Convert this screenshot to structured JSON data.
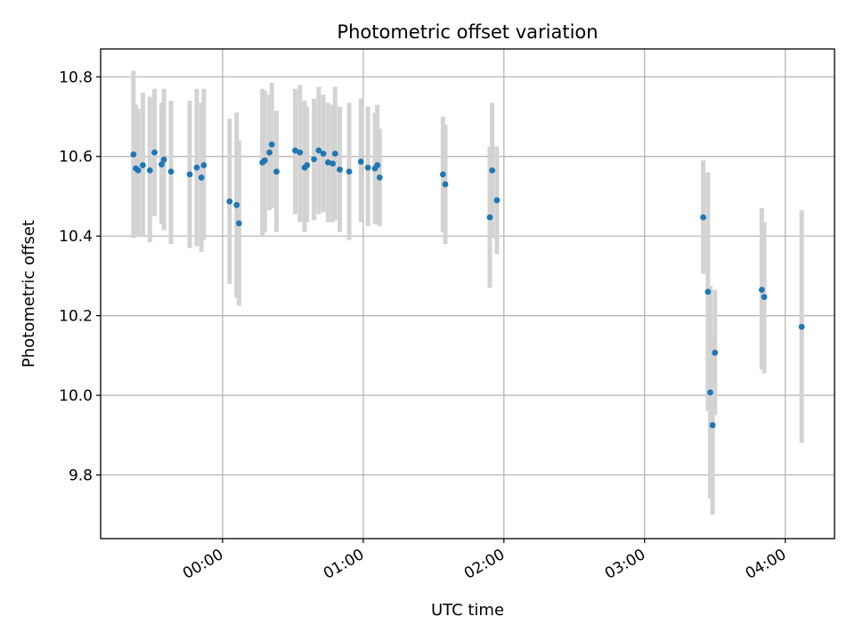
{
  "chart_data": {
    "type": "scatter",
    "title": "Photometric offset variation",
    "xlabel": "UTC time",
    "ylabel": "Photometric offset",
    "x_tick_labels": [
      "00:00",
      "01:00",
      "02:00",
      "03:00",
      "04:00"
    ],
    "y_tick_labels": [
      "9.8",
      "10.0",
      "10.2",
      "10.4",
      "10.6",
      "10.8"
    ],
    "x_unit": "time of day (HH:MM, UTC)",
    "xlim": [
      "23:08",
      "04:21"
    ],
    "ylim": [
      9.64,
      10.87
    ],
    "grid": true,
    "colors": {
      "points": "#1f77b4",
      "error_bars": "#d3d3d3",
      "grid": "#b0b0b0"
    },
    "series": [
      {
        "points": [
          {
            "x": "23:22",
            "y": 10.605,
            "err_low": 10.395,
            "err_high": 10.815
          },
          {
            "x": "23:23",
            "y": 10.57,
            "err_low": 10.4,
            "err_high": 10.73
          },
          {
            "x": "23:24",
            "y": 10.565,
            "err_low": 10.4,
            "err_high": 10.72
          },
          {
            "x": "23:26",
            "y": 10.578,
            "err_low": 10.4,
            "err_high": 10.76
          },
          {
            "x": "23:29",
            "y": 10.565,
            "err_low": 10.385,
            "err_high": 10.75
          },
          {
            "x": "23:31",
            "y": 10.61,
            "err_low": 10.45,
            "err_high": 10.77
          },
          {
            "x": "23:34",
            "y": 10.58,
            "err_low": 10.43,
            "err_high": 10.735
          },
          {
            "x": "23:35",
            "y": 10.592,
            "err_low": 10.415,
            "err_high": 10.77
          },
          {
            "x": "23:38",
            "y": 10.562,
            "err_low": 10.38,
            "err_high": 10.74
          },
          {
            "x": "23:46",
            "y": 10.555,
            "err_low": 10.37,
            "err_high": 10.74
          },
          {
            "x": "23:49",
            "y": 10.572,
            "err_low": 10.375,
            "err_high": 10.77
          },
          {
            "x": "23:51",
            "y": 10.547,
            "err_low": 10.36,
            "err_high": 10.735
          },
          {
            "x": "23:52",
            "y": 10.578,
            "err_low": 10.39,
            "err_high": 10.77
          },
          {
            "x": "00:03",
            "y": 10.487,
            "err_low": 10.28,
            "err_high": 10.695
          },
          {
            "x": "00:06",
            "y": 10.478,
            "err_low": 10.245,
            "err_high": 10.71
          },
          {
            "x": "00:07",
            "y": 10.432,
            "err_low": 10.225,
            "err_high": 10.64
          },
          {
            "x": "00:17",
            "y": 10.585,
            "err_low": 10.4,
            "err_high": 10.77
          },
          {
            "x": "00:18",
            "y": 10.59,
            "err_low": 10.41,
            "err_high": 10.765
          },
          {
            "x": "00:20",
            "y": 10.61,
            "err_low": 10.465,
            "err_high": 10.755
          },
          {
            "x": "00:21",
            "y": 10.63,
            "err_low": 10.47,
            "err_high": 10.785
          },
          {
            "x": "00:23",
            "y": 10.562,
            "err_low": 10.41,
            "err_high": 10.715
          },
          {
            "x": "00:31",
            "y": 10.615,
            "err_low": 10.455,
            "err_high": 10.77
          },
          {
            "x": "00:33",
            "y": 10.61,
            "err_low": 10.435,
            "err_high": 10.78
          },
          {
            "x": "00:35",
            "y": 10.572,
            "err_low": 10.41,
            "err_high": 10.74
          },
          {
            "x": "00:36",
            "y": 10.578,
            "err_low": 10.435,
            "err_high": 10.725
          },
          {
            "x": "00:39",
            "y": 10.593,
            "err_low": 10.44,
            "err_high": 10.745
          },
          {
            "x": "00:41",
            "y": 10.615,
            "err_low": 10.455,
            "err_high": 10.775
          },
          {
            "x": "00:43",
            "y": 10.607,
            "err_low": 10.46,
            "err_high": 10.755
          },
          {
            "x": "00:45",
            "y": 10.585,
            "err_low": 10.435,
            "err_high": 10.735
          },
          {
            "x": "00:47",
            "y": 10.582,
            "err_low": 10.435,
            "err_high": 10.73
          },
          {
            "x": "00:48",
            "y": 10.607,
            "err_low": 10.44,
            "err_high": 10.775
          },
          {
            "x": "00:50",
            "y": 10.567,
            "err_low": 10.41,
            "err_high": 10.725
          },
          {
            "x": "00:54",
            "y": 10.562,
            "err_low": 10.39,
            "err_high": 10.735
          },
          {
            "x": "00:59",
            "y": 10.587,
            "err_low": 10.435,
            "err_high": 10.745
          },
          {
            "x": "01:02",
            "y": 10.572,
            "err_low": 10.425,
            "err_high": 10.725
          },
          {
            "x": "01:05",
            "y": 10.57,
            "err_low": 10.43,
            "err_high": 10.71
          },
          {
            "x": "01:06",
            "y": 10.578,
            "err_low": 10.43,
            "err_high": 10.73
          },
          {
            "x": "01:07",
            "y": 10.547,
            "err_low": 10.425,
            "err_high": 10.67
          },
          {
            "x": "01:34",
            "y": 10.555,
            "err_low": 10.41,
            "err_high": 10.7
          },
          {
            "x": "01:35",
            "y": 10.53,
            "err_low": 10.38,
            "err_high": 10.68
          },
          {
            "x": "01:54",
            "y": 10.447,
            "err_low": 10.27,
            "err_high": 10.625
          },
          {
            "x": "01:55",
            "y": 10.565,
            "err_low": 10.395,
            "err_high": 10.735
          },
          {
            "x": "01:57",
            "y": 10.49,
            "err_low": 10.355,
            "err_high": 10.625
          },
          {
            "x": "03:25",
            "y": 10.447,
            "err_low": 10.305,
            "err_high": 10.59
          },
          {
            "x": "03:27",
            "y": 10.26,
            "err_low": 9.96,
            "err_high": 10.56
          },
          {
            "x": "03:28",
            "y": 10.007,
            "err_low": 9.74,
            "err_high": 10.275
          },
          {
            "x": "03:29",
            "y": 9.925,
            "err_low": 9.7,
            "err_high": 10.15
          },
          {
            "x": "03:30",
            "y": 10.107,
            "err_low": 9.95,
            "err_high": 10.265
          },
          {
            "x": "03:50",
            "y": 10.265,
            "err_low": 10.065,
            "err_high": 10.47
          },
          {
            "x": "03:51",
            "y": 10.247,
            "err_low": 10.055,
            "err_high": 10.435
          },
          {
            "x": "04:07",
            "y": 10.172,
            "err_low": 9.88,
            "err_high": 10.465
          }
        ]
      }
    ]
  }
}
